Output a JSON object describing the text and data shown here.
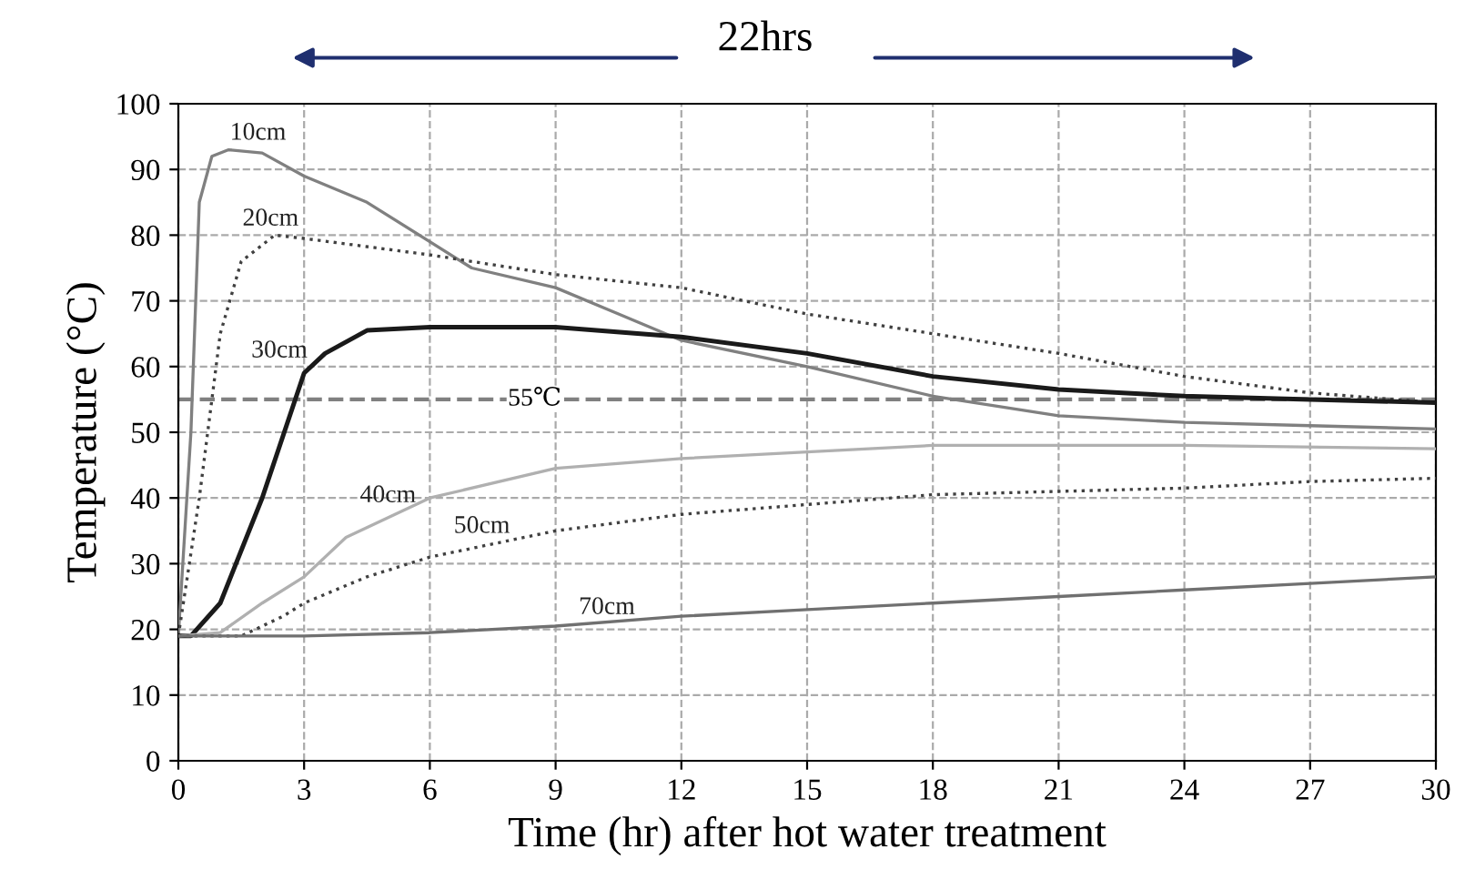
{
  "chart_data": {
    "type": "line",
    "xlabel": "Time (hr) after hot water treatment",
    "ylabel": "Temperature (°C)",
    "xlim": [
      0,
      30
    ],
    "ylim": [
      0,
      100
    ],
    "xticks": [
      0,
      3,
      6,
      9,
      12,
      15,
      18,
      21,
      24,
      27,
      30
    ],
    "yticks": [
      0,
      10,
      20,
      30,
      40,
      50,
      60,
      70,
      80,
      90,
      100
    ],
    "grid": true,
    "legend": false,
    "marker": "none",
    "annotations": [
      "22hrs"
    ],
    "ref_lines": [
      {
        "axis": "y",
        "value": 55,
        "label": "55℃",
        "color": "#808080",
        "line_style": "dashed"
      }
    ],
    "series": [
      {
        "name": "10cm",
        "color": "#808080",
        "line_style": "solid",
        "x": [
          0,
          0.3,
          0.5,
          0.8,
          1.2,
          2,
          3,
          4.5,
          6,
          7,
          9,
          10.5,
          12,
          15,
          18,
          21,
          24,
          27,
          30
        ],
        "values": [
          19,
          50,
          85,
          92,
          93,
          92.5,
          89,
          85,
          79,
          75,
          72,
          68,
          64,
          60,
          55.5,
          52.5,
          51.5,
          51,
          50.5
        ]
      },
      {
        "name": "20cm",
        "color": "#404040",
        "line_style": "dotted",
        "x": [
          0,
          0.5,
          0.8,
          1,
          1.5,
          2.3,
          3,
          6,
          9,
          12,
          15,
          18,
          21,
          24,
          27,
          30
        ],
        "values": [
          19,
          40,
          55,
          65,
          76,
          80,
          79.5,
          77,
          74,
          72,
          68,
          65,
          62,
          58.5,
          56,
          54.5
        ]
      },
      {
        "name": "30cm",
        "color": "#1a1a1a",
        "line_style": "solid",
        "x": [
          0,
          0.3,
          1,
          2,
          3,
          3.5,
          4.5,
          6,
          9,
          12,
          15,
          18,
          21,
          24,
          27,
          30
        ],
        "values": [
          19,
          19,
          24,
          40,
          59,
          62,
          65.5,
          66,
          66,
          64.5,
          62,
          58.5,
          56.5,
          55.5,
          55,
          54.5
        ]
      },
      {
        "name": "40cm",
        "color": "#b0b0b0",
        "line_style": "solid",
        "x": [
          0,
          1,
          2,
          3,
          4,
          6,
          9,
          12,
          15,
          18,
          21,
          24,
          30
        ],
        "values": [
          19,
          19.5,
          24,
          28,
          34,
          40,
          44.5,
          46,
          47,
          48,
          48,
          48,
          47.5
        ]
      },
      {
        "name": "50cm",
        "color": "#404040",
        "line_style": "dotted",
        "x": [
          0,
          1.5,
          2.5,
          3,
          4.5,
          6,
          9,
          12,
          15,
          18,
          21,
          24,
          27,
          30
        ],
        "values": [
          19,
          19,
          22,
          24,
          28,
          31,
          35,
          37.5,
          39,
          40.5,
          41,
          41.5,
          42.5,
          43
        ]
      },
      {
        "name": "70cm",
        "color": "#707070",
        "line_style": "solid",
        "x": [
          0,
          3,
          6,
          9,
          12,
          15,
          18,
          21,
          24,
          27,
          30
        ],
        "values": [
          19,
          19,
          19.5,
          20.5,
          22,
          23,
          24,
          25,
          26,
          27,
          28
        ]
      }
    ]
  }
}
